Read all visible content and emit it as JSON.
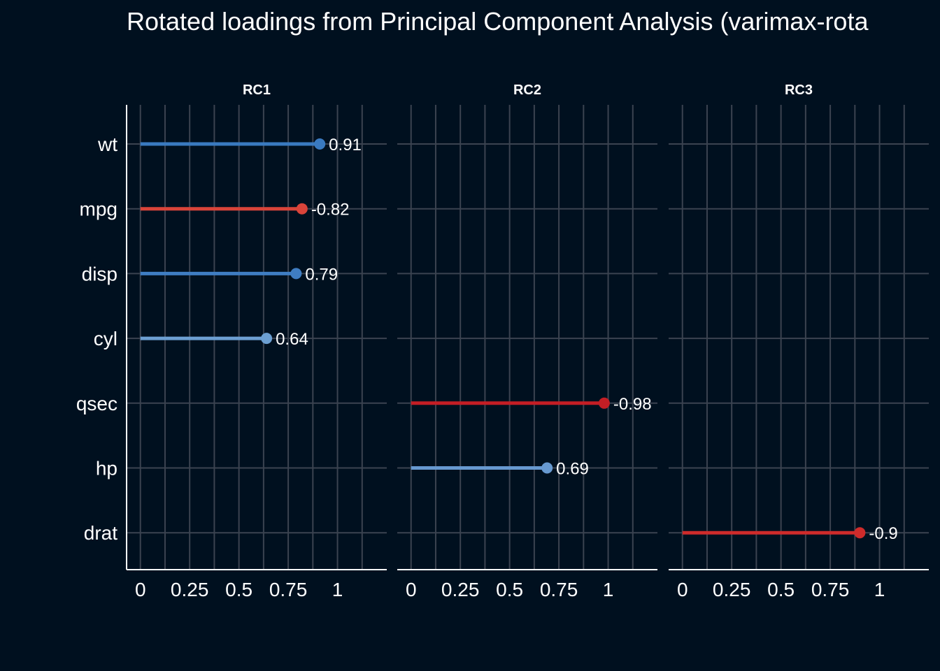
{
  "chart_data": {
    "type": "lollipop",
    "title": "Rotated loadings from Principal Component Analysis (varimax-rota",
    "panels": [
      "RC1",
      "RC2",
      "RC3"
    ],
    "categories": [
      "wt",
      "mpg",
      "disp",
      "cyl",
      "qsec",
      "hp",
      "drat"
    ],
    "x_ticks": [
      "0",
      "0.25",
      "0.5",
      "0.75",
      "1"
    ],
    "xlim": [
      -0.07,
      1.25
    ],
    "loadings": [
      {
        "panel": "RC1",
        "variable": "wt",
        "abs_value": 0.91,
        "label": "0.91",
        "color": "#3a7ac0"
      },
      {
        "panel": "RC1",
        "variable": "mpg",
        "abs_value": 0.82,
        "label": "-0.82",
        "color": "#d9443a"
      },
      {
        "panel": "RC1",
        "variable": "disp",
        "abs_value": 0.79,
        "label": "0.79",
        "color": "#3f7dc2"
      },
      {
        "panel": "RC1",
        "variable": "cyl",
        "abs_value": 0.64,
        "label": "0.64",
        "color": "#6c9fd2"
      },
      {
        "panel": "RC2",
        "variable": "qsec",
        "abs_value": 0.98,
        "label": "-0.98",
        "color": "#c41e25"
      },
      {
        "panel": "RC2",
        "variable": "hp",
        "abs_value": 0.69,
        "label": "0.69",
        "color": "#6799d0"
      },
      {
        "panel": "RC3",
        "variable": "drat",
        "abs_value": 0.9,
        "label": "-0.9",
        "color": "#ce2b2b"
      }
    ],
    "colors": {
      "background": "#00101f",
      "grid": "#3b4350",
      "axis": "#ffffff",
      "text": "#ffffff"
    }
  }
}
